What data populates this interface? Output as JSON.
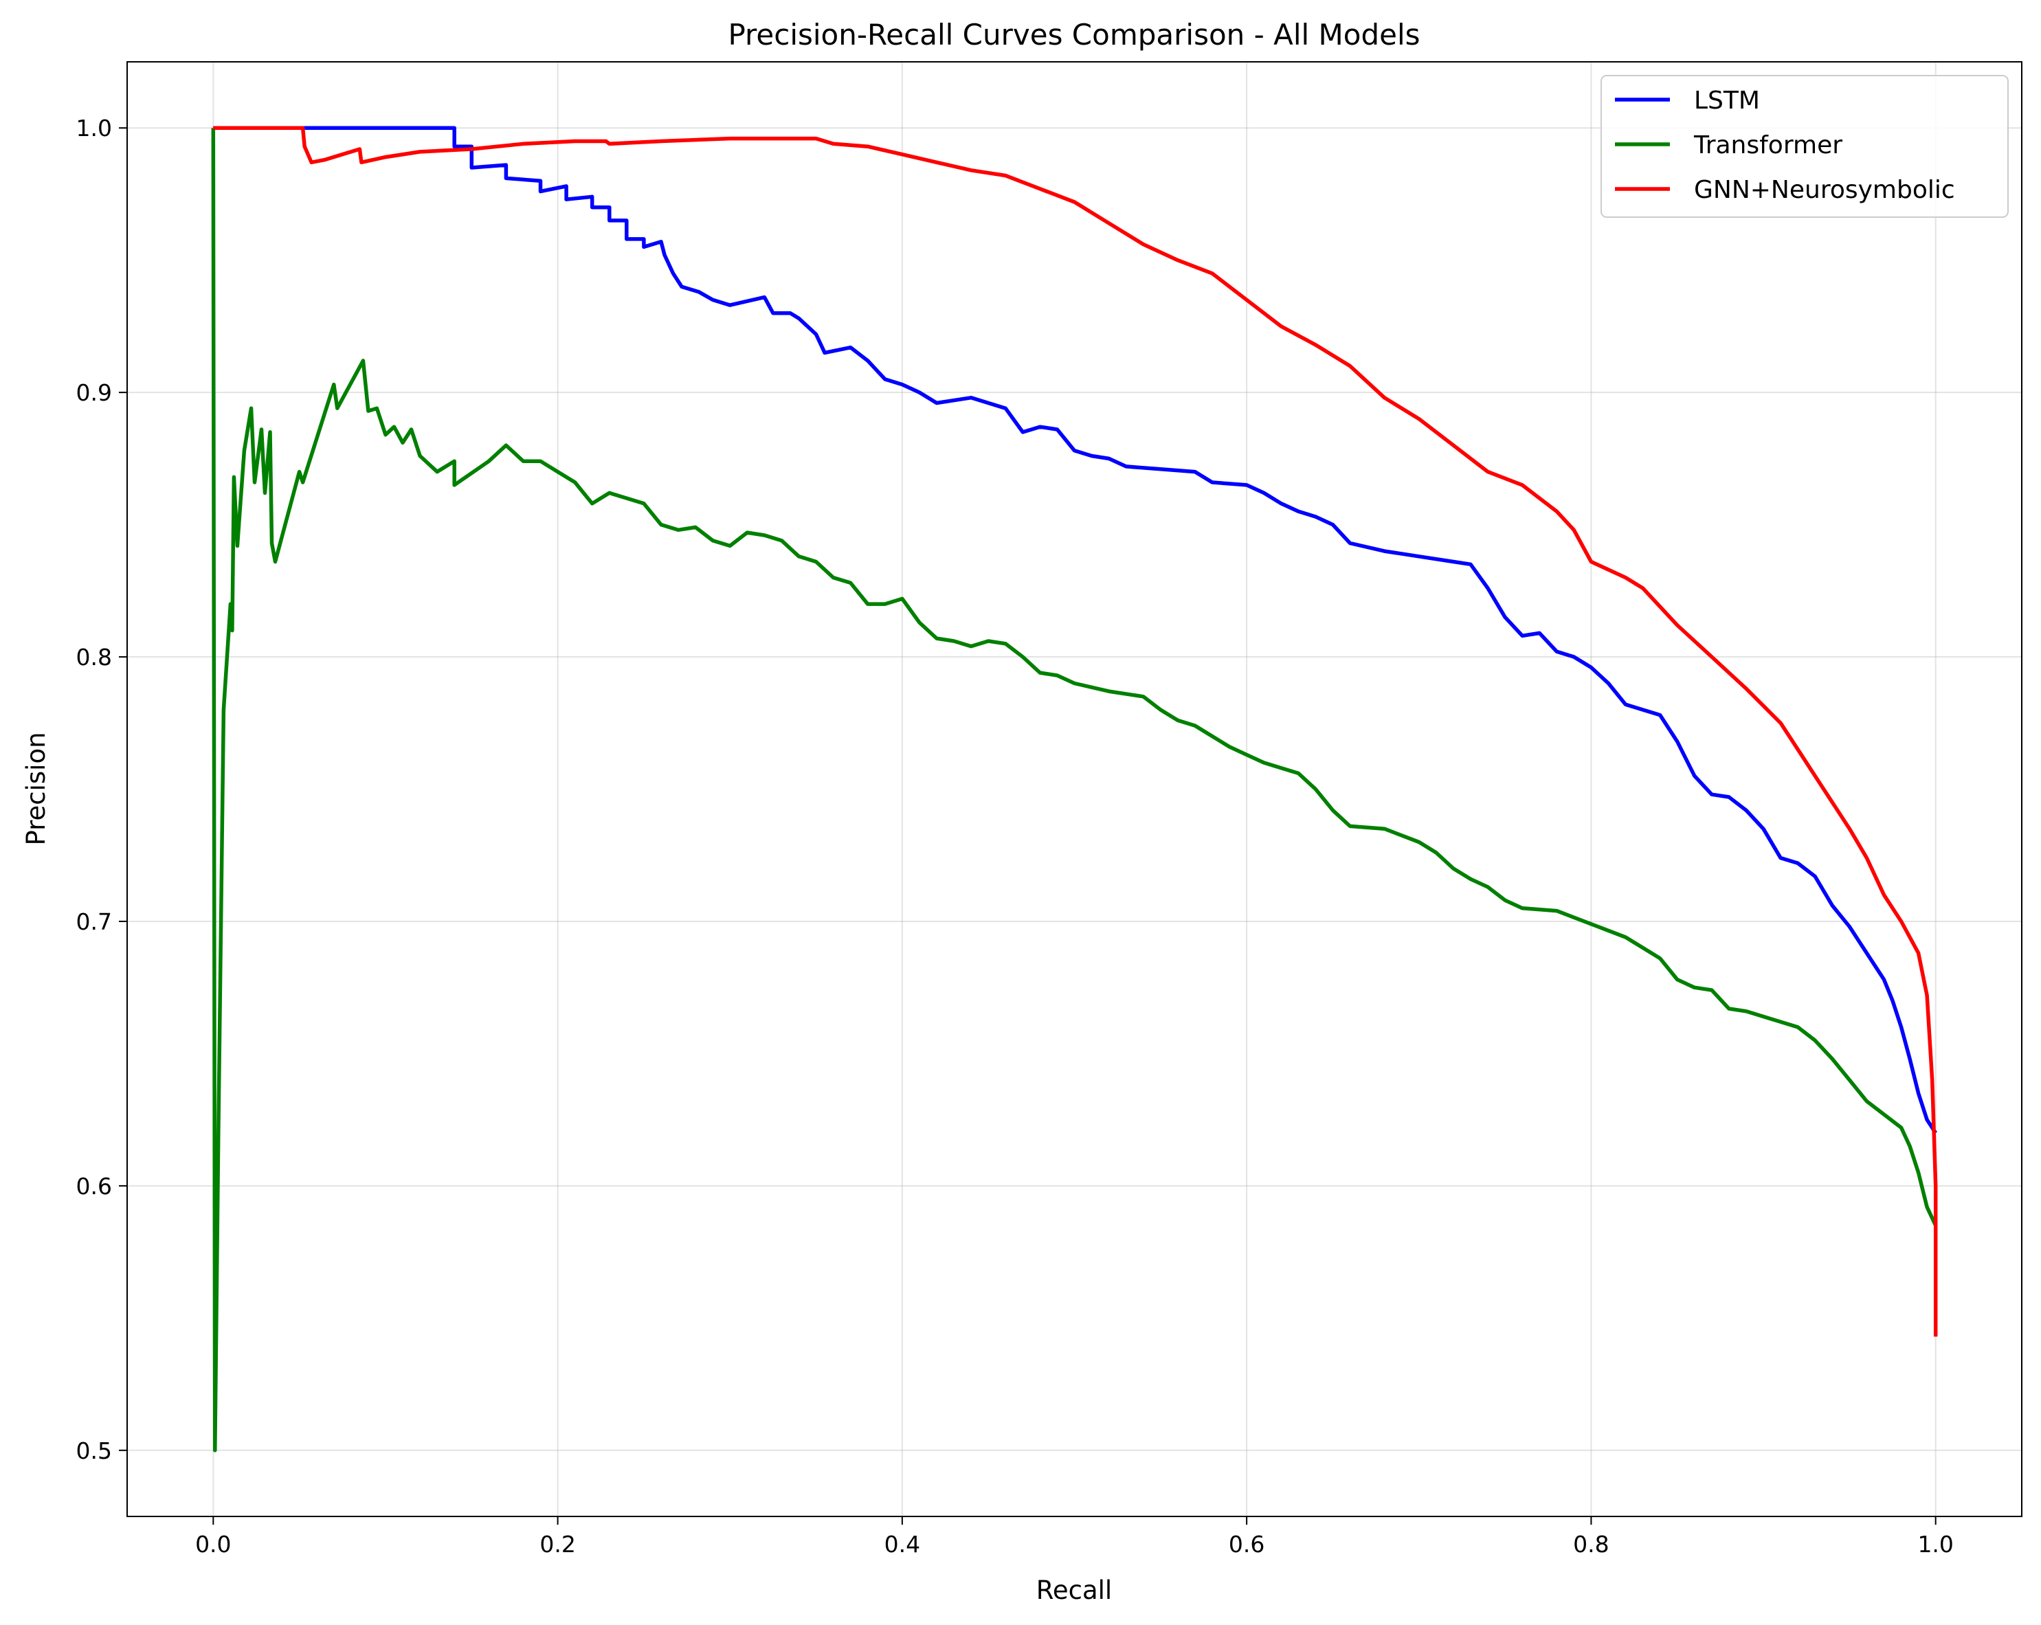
{
  "chart_data": {
    "type": "line",
    "title": "Precision-Recall Curves Comparison - All Models",
    "xlabel": "Recall",
    "ylabel": "Precision",
    "xlim": [
      -0.05,
      1.05
    ],
    "ylim": [
      0.475,
      1.025
    ],
    "x_ticks": [
      0.0,
      0.2,
      0.4,
      0.6,
      0.8,
      1.0
    ],
    "x_tick_labels": [
      "0.0",
      "0.2",
      "0.4",
      "0.6",
      "0.8",
      "1.0"
    ],
    "y_ticks": [
      0.5,
      0.6,
      0.7,
      0.8,
      0.9,
      1.0
    ],
    "y_tick_labels": [
      "0.5",
      "0.6",
      "0.7",
      "0.8",
      "0.9",
      "1.0"
    ],
    "grid": true,
    "legend_position": "top-right",
    "series": [
      {
        "name": "LSTM",
        "color": "#0000ff",
        "points": [
          [
            0.0,
            1.0
          ],
          [
            0.14,
            1.0
          ],
          [
            0.14,
            0.993
          ],
          [
            0.15,
            0.993
          ],
          [
            0.15,
            0.985
          ],
          [
            0.17,
            0.986
          ],
          [
            0.17,
            0.981
          ],
          [
            0.19,
            0.98
          ],
          [
            0.19,
            0.976
          ],
          [
            0.205,
            0.978
          ],
          [
            0.205,
            0.973
          ],
          [
            0.22,
            0.974
          ],
          [
            0.22,
            0.97
          ],
          [
            0.23,
            0.97
          ],
          [
            0.23,
            0.965
          ],
          [
            0.24,
            0.965
          ],
          [
            0.24,
            0.958
          ],
          [
            0.25,
            0.958
          ],
          [
            0.25,
            0.955
          ],
          [
            0.26,
            0.957
          ],
          [
            0.262,
            0.952
          ],
          [
            0.267,
            0.945
          ],
          [
            0.272,
            0.94
          ],
          [
            0.282,
            0.938
          ],
          [
            0.29,
            0.935
          ],
          [
            0.3,
            0.933
          ],
          [
            0.32,
            0.936
          ],
          [
            0.325,
            0.93
          ],
          [
            0.335,
            0.93
          ],
          [
            0.34,
            0.928
          ],
          [
            0.35,
            0.922
          ],
          [
            0.355,
            0.915
          ],
          [
            0.37,
            0.917
          ],
          [
            0.38,
            0.912
          ],
          [
            0.39,
            0.905
          ],
          [
            0.4,
            0.903
          ],
          [
            0.41,
            0.9
          ],
          [
            0.42,
            0.896
          ],
          [
            0.44,
            0.898
          ],
          [
            0.46,
            0.894
          ],
          [
            0.47,
            0.885
          ],
          [
            0.48,
            0.887
          ],
          [
            0.49,
            0.886
          ],
          [
            0.5,
            0.878
          ],
          [
            0.51,
            0.876
          ],
          [
            0.52,
            0.875
          ],
          [
            0.53,
            0.872
          ],
          [
            0.55,
            0.871
          ],
          [
            0.57,
            0.87
          ],
          [
            0.58,
            0.866
          ],
          [
            0.6,
            0.865
          ],
          [
            0.61,
            0.862
          ],
          [
            0.62,
            0.858
          ],
          [
            0.63,
            0.855
          ],
          [
            0.64,
            0.853
          ],
          [
            0.65,
            0.85
          ],
          [
            0.66,
            0.843
          ],
          [
            0.68,
            0.84
          ],
          [
            0.7,
            0.838
          ],
          [
            0.72,
            0.836
          ],
          [
            0.73,
            0.835
          ],
          [
            0.74,
            0.826
          ],
          [
            0.75,
            0.815
          ],
          [
            0.76,
            0.808
          ],
          [
            0.77,
            0.809
          ],
          [
            0.78,
            0.802
          ],
          [
            0.79,
            0.8
          ],
          [
            0.8,
            0.796
          ],
          [
            0.81,
            0.79
          ],
          [
            0.82,
            0.782
          ],
          [
            0.83,
            0.78
          ],
          [
            0.84,
            0.778
          ],
          [
            0.85,
            0.768
          ],
          [
            0.86,
            0.755
          ],
          [
            0.87,
            0.748
          ],
          [
            0.88,
            0.747
          ],
          [
            0.89,
            0.742
          ],
          [
            0.9,
            0.735
          ],
          [
            0.91,
            0.724
          ],
          [
            0.92,
            0.722
          ],
          [
            0.93,
            0.717
          ],
          [
            0.94,
            0.706
          ],
          [
            0.95,
            0.698
          ],
          [
            0.96,
            0.688
          ],
          [
            0.97,
            0.678
          ],
          [
            0.975,
            0.67
          ],
          [
            0.98,
            0.66
          ],
          [
            0.985,
            0.648
          ],
          [
            0.99,
            0.635
          ],
          [
            0.995,
            0.625
          ],
          [
            1.0,
            0.62
          ]
        ]
      },
      {
        "name": "Transformer",
        "color": "#008000",
        "points": [
          [
            0.0,
            1.0
          ],
          [
            0.001,
            0.5
          ],
          [
            0.003,
            0.62
          ],
          [
            0.006,
            0.78
          ],
          [
            0.01,
            0.82
          ],
          [
            0.011,
            0.81
          ],
          [
            0.012,
            0.868
          ],
          [
            0.014,
            0.842
          ],
          [
            0.018,
            0.878
          ],
          [
            0.022,
            0.894
          ],
          [
            0.024,
            0.866
          ],
          [
            0.028,
            0.886
          ],
          [
            0.03,
            0.862
          ],
          [
            0.033,
            0.885
          ],
          [
            0.034,
            0.843
          ],
          [
            0.036,
            0.836
          ],
          [
            0.05,
            0.87
          ],
          [
            0.052,
            0.866
          ],
          [
            0.07,
            0.903
          ],
          [
            0.072,
            0.894
          ],
          [
            0.087,
            0.912
          ],
          [
            0.09,
            0.893
          ],
          [
            0.095,
            0.894
          ],
          [
            0.1,
            0.884
          ],
          [
            0.105,
            0.887
          ],
          [
            0.11,
            0.881
          ],
          [
            0.115,
            0.886
          ],
          [
            0.12,
            0.876
          ],
          [
            0.13,
            0.87
          ],
          [
            0.14,
            0.874
          ],
          [
            0.14,
            0.865
          ],
          [
            0.16,
            0.874
          ],
          [
            0.17,
            0.88
          ],
          [
            0.18,
            0.874
          ],
          [
            0.19,
            0.874
          ],
          [
            0.2,
            0.87
          ],
          [
            0.21,
            0.866
          ],
          [
            0.22,
            0.858
          ],
          [
            0.23,
            0.862
          ],
          [
            0.25,
            0.858
          ],
          [
            0.26,
            0.85
          ],
          [
            0.27,
            0.848
          ],
          [
            0.28,
            0.849
          ],
          [
            0.29,
            0.844
          ],
          [
            0.3,
            0.842
          ],
          [
            0.31,
            0.847
          ],
          [
            0.32,
            0.846
          ],
          [
            0.33,
            0.844
          ],
          [
            0.34,
            0.838
          ],
          [
            0.35,
            0.836
          ],
          [
            0.36,
            0.83
          ],
          [
            0.37,
            0.828
          ],
          [
            0.38,
            0.82
          ],
          [
            0.39,
            0.82
          ],
          [
            0.4,
            0.822
          ],
          [
            0.41,
            0.813
          ],
          [
            0.42,
            0.807
          ],
          [
            0.43,
            0.806
          ],
          [
            0.44,
            0.804
          ],
          [
            0.45,
            0.806
          ],
          [
            0.46,
            0.805
          ],
          [
            0.47,
            0.8
          ],
          [
            0.48,
            0.794
          ],
          [
            0.49,
            0.793
          ],
          [
            0.5,
            0.79
          ],
          [
            0.52,
            0.787
          ],
          [
            0.54,
            0.785
          ],
          [
            0.55,
            0.78
          ],
          [
            0.56,
            0.776
          ],
          [
            0.57,
            0.774
          ],
          [
            0.58,
            0.77
          ],
          [
            0.59,
            0.766
          ],
          [
            0.6,
            0.763
          ],
          [
            0.61,
            0.76
          ],
          [
            0.62,
            0.758
          ],
          [
            0.63,
            0.756
          ],
          [
            0.64,
            0.75
          ],
          [
            0.65,
            0.742
          ],
          [
            0.66,
            0.736
          ],
          [
            0.68,
            0.735
          ],
          [
            0.7,
            0.73
          ],
          [
            0.71,
            0.726
          ],
          [
            0.72,
            0.72
          ],
          [
            0.73,
            0.716
          ],
          [
            0.74,
            0.713
          ],
          [
            0.75,
            0.708
          ],
          [
            0.76,
            0.705
          ],
          [
            0.78,
            0.704
          ],
          [
            0.8,
            0.699
          ],
          [
            0.82,
            0.694
          ],
          [
            0.83,
            0.69
          ],
          [
            0.84,
            0.686
          ],
          [
            0.85,
            0.678
          ],
          [
            0.86,
            0.675
          ],
          [
            0.87,
            0.674
          ],
          [
            0.88,
            0.667
          ],
          [
            0.89,
            0.666
          ],
          [
            0.9,
            0.664
          ],
          [
            0.92,
            0.66
          ],
          [
            0.93,
            0.655
          ],
          [
            0.94,
            0.648
          ],
          [
            0.95,
            0.64
          ],
          [
            0.96,
            0.632
          ],
          [
            0.97,
            0.627
          ],
          [
            0.98,
            0.622
          ],
          [
            0.985,
            0.615
          ],
          [
            0.99,
            0.605
          ],
          [
            0.995,
            0.592
          ],
          [
            1.0,
            0.585
          ]
        ]
      },
      {
        "name": "GNN+Neurosymbolic",
        "color": "#ff0000",
        "points": [
          [
            0.0,
            1.0
          ],
          [
            0.052,
            1.0
          ],
          [
            0.053,
            0.993
          ],
          [
            0.057,
            0.987
          ],
          [
            0.065,
            0.988
          ],
          [
            0.085,
            0.992
          ],
          [
            0.086,
            0.987
          ],
          [
            0.1,
            0.989
          ],
          [
            0.12,
            0.991
          ],
          [
            0.15,
            0.992
          ],
          [
            0.18,
            0.994
          ],
          [
            0.21,
            0.995
          ],
          [
            0.228,
            0.995
          ],
          [
            0.23,
            0.994
          ],
          [
            0.26,
            0.995
          ],
          [
            0.3,
            0.996
          ],
          [
            0.35,
            0.996
          ],
          [
            0.36,
            0.994
          ],
          [
            0.38,
            0.993
          ],
          [
            0.4,
            0.99
          ],
          [
            0.42,
            0.987
          ],
          [
            0.44,
            0.984
          ],
          [
            0.46,
            0.982
          ],
          [
            0.48,
            0.977
          ],
          [
            0.5,
            0.972
          ],
          [
            0.52,
            0.964
          ],
          [
            0.54,
            0.956
          ],
          [
            0.56,
            0.95
          ],
          [
            0.58,
            0.945
          ],
          [
            0.6,
            0.935
          ],
          [
            0.62,
            0.925
          ],
          [
            0.64,
            0.918
          ],
          [
            0.66,
            0.91
          ],
          [
            0.68,
            0.898
          ],
          [
            0.7,
            0.89
          ],
          [
            0.72,
            0.88
          ],
          [
            0.74,
            0.87
          ],
          [
            0.76,
            0.865
          ],
          [
            0.78,
            0.855
          ],
          [
            0.79,
            0.848
          ],
          [
            0.8,
            0.836
          ],
          [
            0.82,
            0.83
          ],
          [
            0.83,
            0.826
          ],
          [
            0.85,
            0.812
          ],
          [
            0.87,
            0.8
          ],
          [
            0.89,
            0.788
          ],
          [
            0.91,
            0.775
          ],
          [
            0.92,
            0.765
          ],
          [
            0.93,
            0.755
          ],
          [
            0.94,
            0.745
          ],
          [
            0.95,
            0.735
          ],
          [
            0.96,
            0.724
          ],
          [
            0.97,
            0.71
          ],
          [
            0.98,
            0.7
          ],
          [
            0.99,
            0.688
          ],
          [
            0.995,
            0.672
          ],
          [
            0.998,
            0.64
          ],
          [
            1.0,
            0.6
          ],
          [
            1.0,
            0.543
          ]
        ]
      }
    ]
  }
}
